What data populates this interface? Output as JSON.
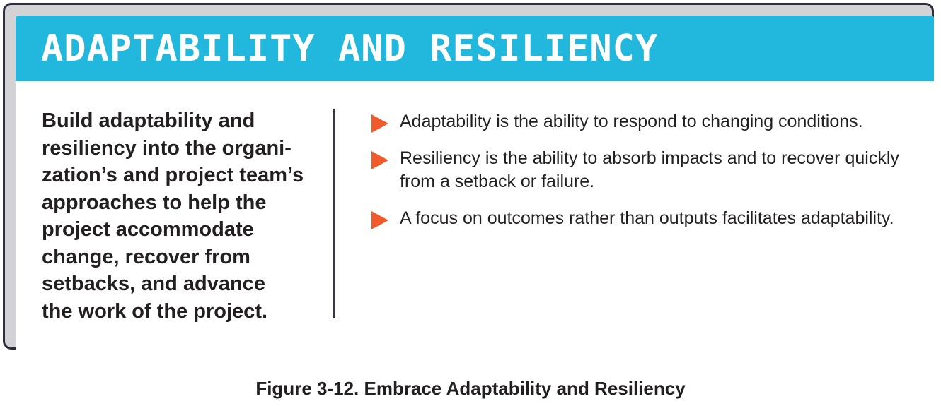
{
  "banner": {
    "title": "ADAPTABILITY AND RESILIENCY",
    "color": "#22b8dd"
  },
  "summary": {
    "text": "Build adaptability and\nresiliency into the organi-\nzation’s and project team’s\napproaches to help the\nproject accommodate\nchange, recover from\nsetbacks, and advance\nthe work of the project."
  },
  "bullets": [
    {
      "icon": "arrow-right-icon",
      "text": "Adaptability is the ability to respond to changing conditions."
    },
    {
      "icon": "arrow-right-icon",
      "text": "Resiliency is the ability to absorb impacts and to recover quickly from a setback or failure."
    },
    {
      "icon": "arrow-right-icon",
      "text": "A focus on outcomes rather than outputs facilitates adaptability."
    }
  ],
  "bullet_color": "#ef5b2b",
  "caption": {
    "text": "Figure 3-12. Embrace Adaptability and Resiliency"
  }
}
